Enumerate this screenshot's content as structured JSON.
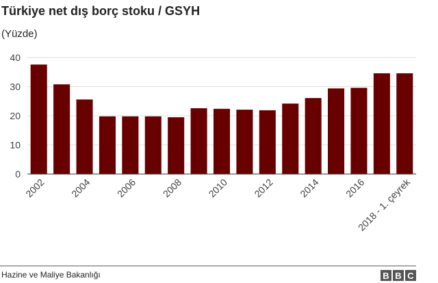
{
  "chart_data": {
    "type": "bar",
    "title": "Türkiye net dış borç stoku / GSYH",
    "subtitle": "(Yüzde)",
    "categories": [
      "2002",
      null,
      "2004",
      null,
      "2006",
      null,
      "2008",
      null,
      "2010",
      null,
      "2012",
      null,
      "2014",
      null,
      "2016",
      null,
      "2018 - 1. çeyrek"
    ],
    "values": [
      37.6,
      30.8,
      25.6,
      19.8,
      19.8,
      19.8,
      19.5,
      22.6,
      22.4,
      22.1,
      21.9,
      24.2,
      26.1,
      29.4,
      29.6,
      34.6,
      34.6
    ],
    "color": "#680000",
    "ylim": [
      0,
      40
    ],
    "yticks": [
      0,
      10,
      20,
      30,
      40
    ],
    "grid": true,
    "source": "Hazine ve Maliye Bakanlığı",
    "logo": [
      "B",
      "B",
      "C"
    ]
  }
}
